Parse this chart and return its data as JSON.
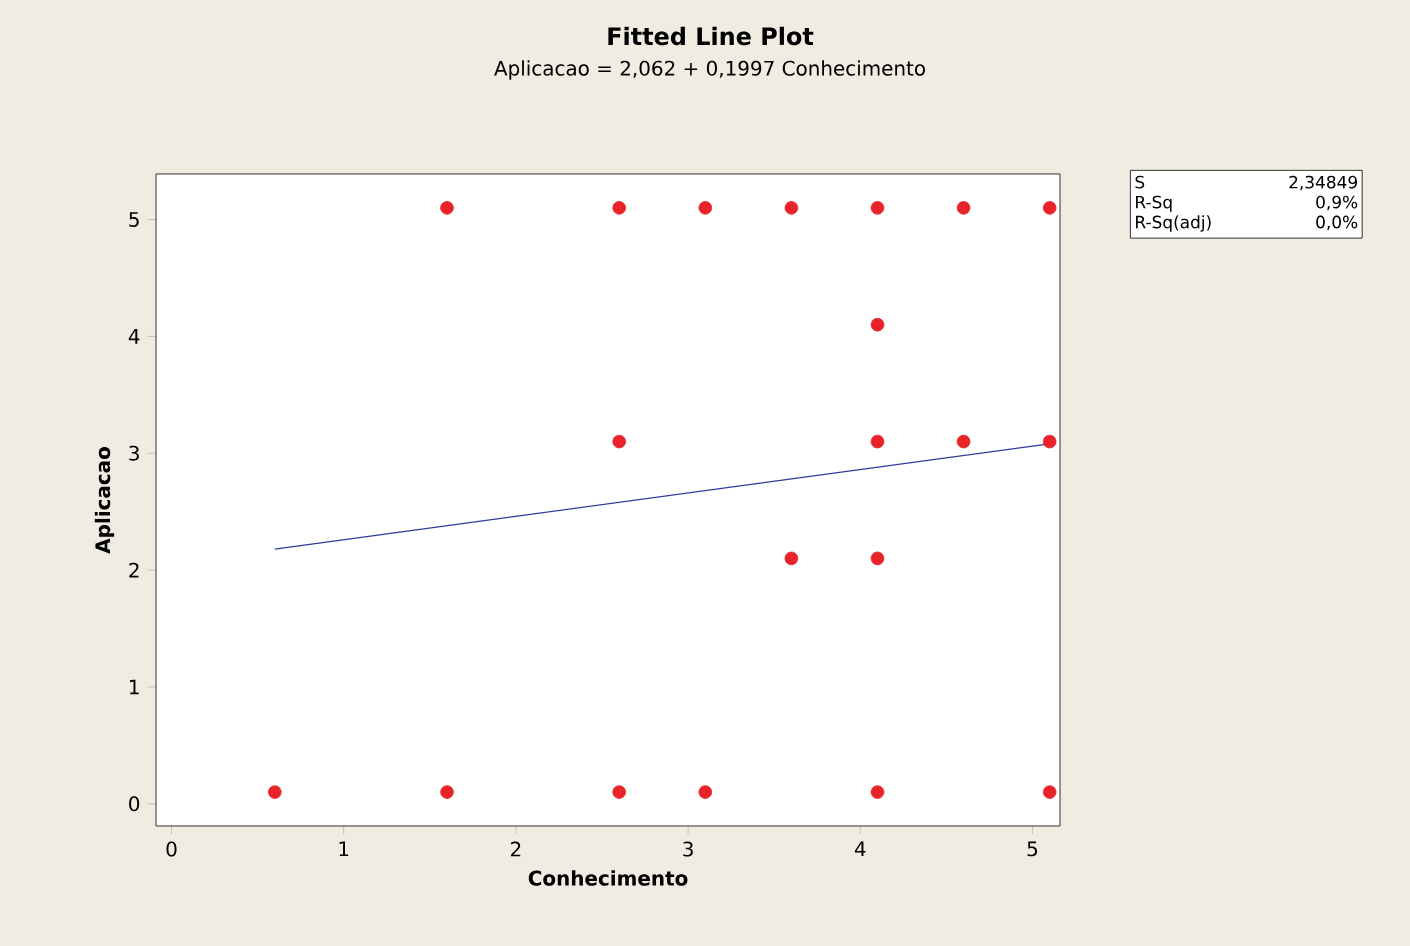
{
  "chart_data": {
    "type": "scatter",
    "title": "Fitted Line Plot",
    "subtitle": "Aplicacao =  2,062 + 0,1997 Conhecimento",
    "xlabel": "Conhecimento",
    "ylabel": "Aplicacao",
    "xlim": [
      -0.09,
      5.16
    ],
    "ylim": [
      -0.19,
      5.39
    ],
    "xticks": [
      0,
      1,
      2,
      3,
      4,
      5
    ],
    "yticks": [
      0,
      1,
      2,
      3,
      4,
      5
    ],
    "grid": false,
    "series": [
      {
        "marker": "circle",
        "color": "#e8232a",
        "x": [
          1.6,
          2.6,
          3.1,
          3.6,
          4.1,
          4.6,
          5.1,
          4.1,
          2.6,
          4.1,
          4.6,
          5.1,
          3.6,
          4.1,
          0.6,
          1.6,
          2.6,
          3.1,
          4.1,
          5.1
        ],
        "values": [
          5.1,
          5.1,
          5.1,
          5.1,
          5.1,
          5.1,
          5.1,
          4.1,
          3.1,
          3.1,
          3.1,
          3.1,
          2.1,
          2.1,
          0.1,
          0.1,
          0.1,
          0.1,
          0.1,
          0.1
        ]
      },
      {
        "type": "line",
        "color": "#2b3b9b",
        "marker": "none",
        "line_style": "solid",
        "x": [
          0.6,
          5.1
        ],
        "values": [
          2.18,
          3.08
        ]
      }
    ],
    "annotations": [
      "S",
      "2,34849",
      "R-Sq",
      "0,9%",
      "R-Sq(adj)",
      "0,0%"
    ]
  }
}
